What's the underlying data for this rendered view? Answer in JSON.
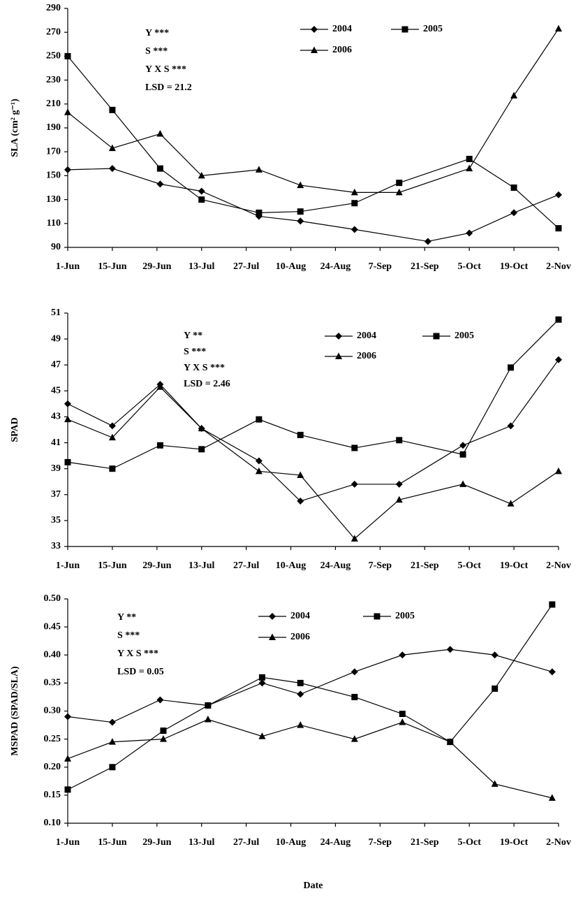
{
  "chart_data": [
    {
      "type": "line",
      "ylabel": "SLA (cm² g⁻¹)",
      "annotations": [
        "Y ***",
        "S ***",
        "Y X S ***",
        "LSD = 21.2"
      ],
      "xlim": [
        0,
        154
      ],
      "ylim": [
        90,
        290
      ],
      "xticks": [
        {
          "value": 0,
          "label": "1-Jun"
        },
        {
          "value": 14,
          "label": "15-Jun"
        },
        {
          "value": 28,
          "label": "29-Jun"
        },
        {
          "value": 42,
          "label": "13-Jul"
        },
        {
          "value": 56,
          "label": "27-Jul"
        },
        {
          "value": 70,
          "label": "10-Aug"
        },
        {
          "value": 84,
          "label": "24-Aug"
        },
        {
          "value": 98,
          "label": "7-Sep"
        },
        {
          "value": 112,
          "label": "21-Sep"
        },
        {
          "value": 126,
          "label": "5-Oct"
        },
        {
          "value": 140,
          "label": "19-Oct"
        },
        {
          "value": 154,
          "label": "2-Nov"
        }
      ],
      "yticks": [
        90,
        110,
        130,
        150,
        170,
        190,
        210,
        230,
        250,
        270,
        290
      ],
      "series": [
        {
          "name": "2004",
          "color": "#000000",
          "marker": "diamond",
          "x": [
            0,
            14,
            29,
            42,
            60,
            73,
            90,
            113,
            126,
            140,
            154
          ],
          "values": [
            155,
            156,
            143,
            137,
            116,
            112,
            105,
            95,
            102,
            119,
            134
          ]
        },
        {
          "name": "2005",
          "color": "#000000",
          "marker": "square",
          "x": [
            0,
            14,
            29,
            42,
            60,
            73,
            90,
            104,
            126,
            140,
            154
          ],
          "values": [
            250,
            205,
            156,
            130,
            119,
            120,
            127,
            144,
            164,
            140,
            106
          ]
        },
        {
          "name": "2006",
          "color": "#000000",
          "marker": "triangle",
          "x": [
            0,
            14,
            29,
            42,
            60,
            73,
            90,
            104,
            126,
            140,
            154
          ],
          "values": [
            203,
            173,
            185,
            150,
            155,
            142,
            136,
            136,
            156,
            217,
            273
          ]
        }
      ]
    },
    {
      "type": "line",
      "ylabel": "SPAD",
      "annotations": [
        "Y **",
        "S ***",
        "Y X S ***",
        "LSD = 2.46"
      ],
      "xlim": [
        0,
        154
      ],
      "ylim": [
        33,
        51
      ],
      "xticks": [
        {
          "value": 0,
          "label": "1-Jun"
        },
        {
          "value": 14,
          "label": "15-Jun"
        },
        {
          "value": 28,
          "label": "29-Jun"
        },
        {
          "value": 42,
          "label": "13-Jul"
        },
        {
          "value": 56,
          "label": "27-Jul"
        },
        {
          "value": 70,
          "label": "10-Aug"
        },
        {
          "value": 84,
          "label": "24-Aug"
        },
        {
          "value": 98,
          "label": "7-Sep"
        },
        {
          "value": 112,
          "label": "21-Sep"
        },
        {
          "value": 126,
          "label": "5-Oct"
        },
        {
          "value": 140,
          "label": "19-Oct"
        },
        {
          "value": 154,
          "label": "2-Nov"
        }
      ],
      "yticks": [
        33,
        35,
        37,
        39,
        41,
        43,
        45,
        47,
        49,
        51
      ],
      "series": [
        {
          "name": "2004",
          "color": "#000000",
          "marker": "diamond",
          "x": [
            0,
            14,
            29,
            42,
            60,
            73,
            90,
            104,
            124,
            139,
            154
          ],
          "values": [
            44.0,
            42.3,
            45.5,
            42.1,
            39.6,
            36.5,
            37.8,
            37.8,
            40.8,
            42.3,
            47.4
          ]
        },
        {
          "name": "2005",
          "color": "#000000",
          "marker": "square",
          "x": [
            0,
            14,
            29,
            42,
            60,
            73,
            90,
            104,
            124,
            139,
            154
          ],
          "values": [
            39.5,
            39.0,
            40.8,
            40.5,
            42.8,
            41.6,
            40.6,
            41.2,
            40.1,
            46.8,
            50.5
          ]
        },
        {
          "name": "2006",
          "color": "#000000",
          "marker": "triangle",
          "x": [
            0,
            14,
            29,
            42,
            60,
            73,
            90,
            104,
            124,
            139,
            154
          ],
          "values": [
            42.8,
            41.4,
            45.3,
            42.1,
            38.8,
            38.5,
            33.6,
            36.6,
            37.8,
            36.3,
            38.8
          ]
        }
      ]
    },
    {
      "type": "line",
      "ylabel": "MSPAD (SPAD/SLA)",
      "xlabel": "Date",
      "annotations": [
        "Y **",
        "S ***",
        "Y X S ***",
        "LSD = 0.05"
      ],
      "xlim": [
        0,
        154
      ],
      "ylim": [
        0.1,
        0.5
      ],
      "xticks": [
        {
          "value": 0,
          "label": "1-Jun"
        },
        {
          "value": 14,
          "label": "15-Jun"
        },
        {
          "value": 28,
          "label": "29-Jun"
        },
        {
          "value": 42,
          "label": "13-Jul"
        },
        {
          "value": 56,
          "label": "27-Jul"
        },
        {
          "value": 70,
          "label": "10-Aug"
        },
        {
          "value": 84,
          "label": "24-Aug"
        },
        {
          "value": 98,
          "label": "7-Sep"
        },
        {
          "value": 112,
          "label": "21-Sep"
        },
        {
          "value": 126,
          "label": "5-Oct"
        },
        {
          "value": 140,
          "label": "19-Oct"
        },
        {
          "value": 154,
          "label": "2-Nov"
        }
      ],
      "yticks": [
        {
          "value": 0.1,
          "label": "0.10"
        },
        0.15,
        {
          "value": 0.2,
          "label": "0.20"
        },
        0.25,
        {
          "value": 0.3,
          "label": "0.30"
        },
        0.35,
        {
          "value": 0.4,
          "label": "0.40"
        },
        0.45,
        {
          "value": 0.5,
          "label": "0.50"
        }
      ],
      "series": [
        {
          "name": "2004",
          "color": "#000000",
          "marker": "diamond",
          "x": [
            0,
            14,
            29,
            44,
            61,
            73,
            90,
            105,
            120,
            134,
            152
          ],
          "values": [
            0.29,
            0.28,
            0.32,
            0.31,
            0.35,
            0.33,
            0.37,
            0.4,
            0.41,
            0.4,
            0.37
          ]
        },
        {
          "name": "2005",
          "color": "#000000",
          "marker": "square",
          "x": [
            0,
            14,
            30,
            44,
            61,
            73,
            90,
            105,
            120,
            134,
            152
          ],
          "values": [
            0.16,
            0.2,
            0.265,
            0.31,
            0.36,
            0.35,
            0.325,
            0.295,
            0.245,
            0.34,
            0.49
          ]
        },
        {
          "name": "2006",
          "color": "#000000",
          "marker": "triangle",
          "x": [
            0,
            14,
            30,
            44,
            61,
            73,
            90,
            105,
            120,
            134,
            152
          ],
          "values": [
            0.215,
            0.245,
            0.25,
            0.285,
            0.255,
            0.275,
            0.25,
            0.28,
            0.245,
            0.17,
            0.145
          ]
        }
      ]
    }
  ]
}
